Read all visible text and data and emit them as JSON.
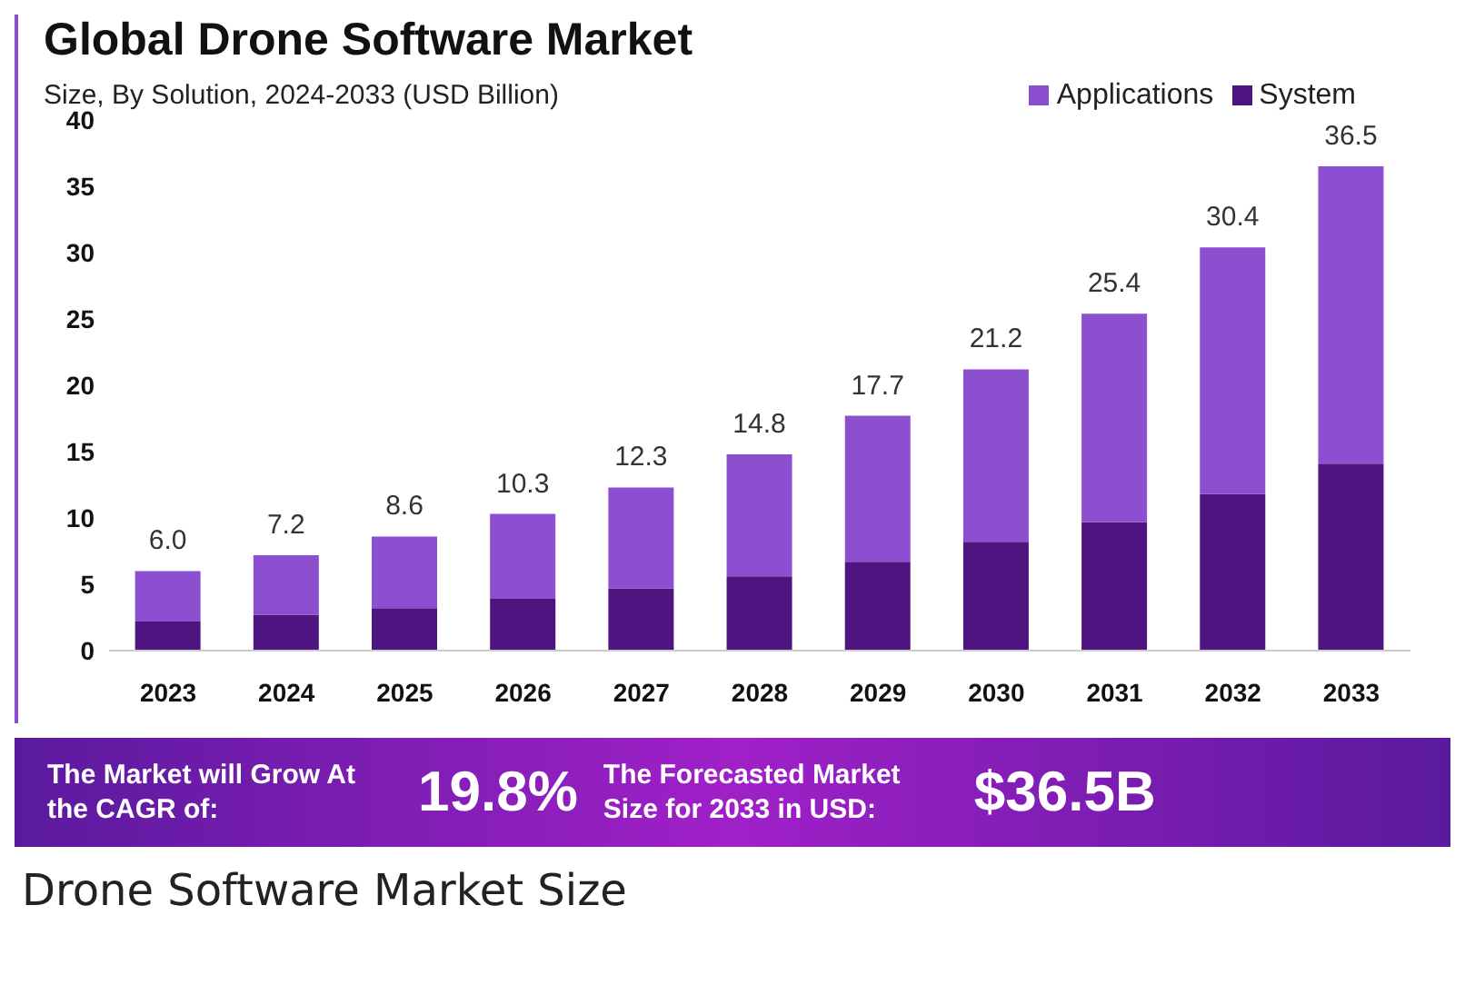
{
  "chart_data": {
    "type": "bar",
    "title": "Global Drone Software Market",
    "subtitle": "Size, By Solution, 2024-2033 (USD Billion)",
    "categories": [
      "2023",
      "2024",
      "2025",
      "2026",
      "2027",
      "2028",
      "2029",
      "2030",
      "2031",
      "2032",
      "2033"
    ],
    "series": [
      {
        "name": "System",
        "color": "#4e1580",
        "values": [
          2.2,
          2.7,
          3.2,
          3.9,
          4.7,
          5.6,
          6.7,
          8.2,
          9.7,
          11.8,
          14.1
        ]
      },
      {
        "name": "Applications",
        "color": "#8b4fcf",
        "values": [
          3.8,
          4.5,
          5.4,
          6.4,
          7.6,
          9.2,
          11.0,
          13.0,
          15.7,
          18.6,
          22.4
        ]
      }
    ],
    "stacked": true,
    "ylim": [
      0,
      40
    ],
    "yticks": [
      0,
      5,
      10,
      15,
      20,
      25,
      30,
      35,
      40
    ],
    "grid": false,
    "legend": "top right",
    "totals": [
      "6.0",
      "7.2",
      "8.6",
      "10.3",
      "12.3",
      "14.8",
      "17.7",
      "21.2",
      "25.4",
      "30.4",
      "36.5"
    ],
    "annotations": [
      "The Market will Grow At the CAGR of:",
      "19.8%",
      "The Forecasted Market Size for 2033 in USD:",
      "$36.5B",
      "Drone Software Market Size"
    ]
  }
}
